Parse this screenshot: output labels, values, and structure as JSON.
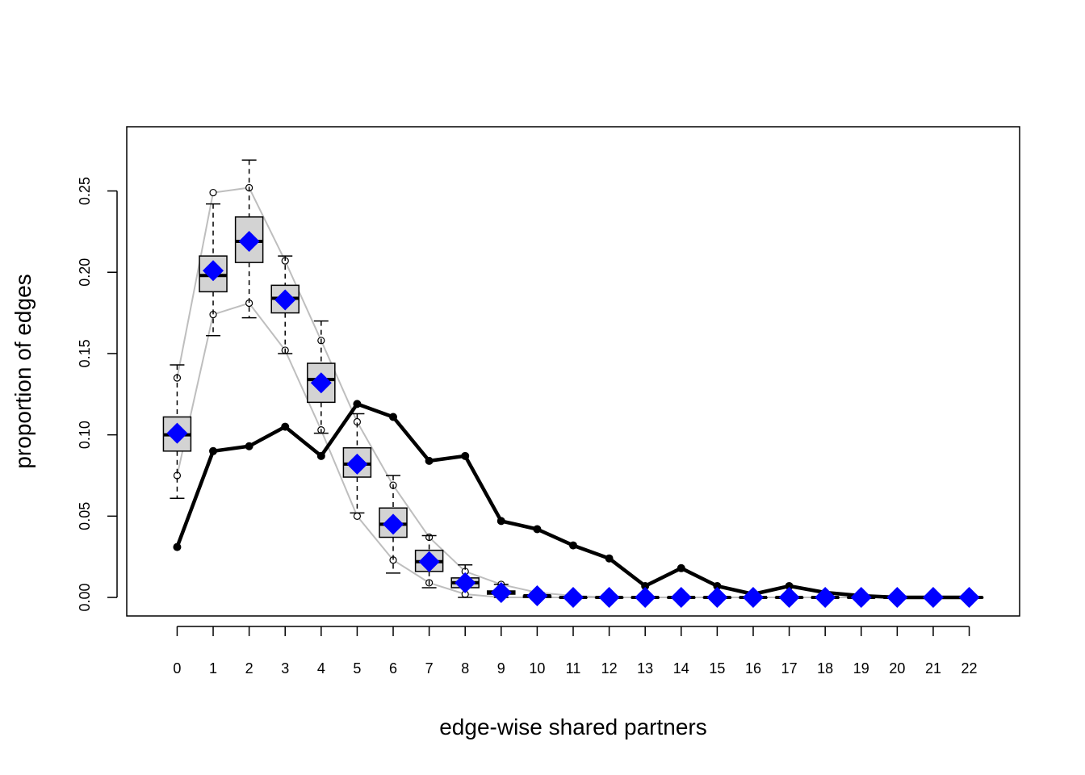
{
  "chart_data": {
    "type": "boxplot",
    "xlabel": "edge-wise shared partners",
    "ylabel": "proportion of edges",
    "xlim": [
      -1.4,
      23.4
    ],
    "ylim": [
      -0.0114,
      0.2895
    ],
    "x_ticks": [
      0,
      1,
      2,
      3,
      4,
      5,
      6,
      7,
      8,
      9,
      10,
      11,
      12,
      13,
      14,
      15,
      16,
      17,
      18,
      19,
      20,
      21,
      22
    ],
    "y_ticks": [
      0.0,
      0.05,
      0.1,
      0.15,
      0.2,
      0.25
    ],
    "y_tick_labels": [
      "0.00",
      "0.05",
      "0.10",
      "0.15",
      "0.20",
      "0.25"
    ],
    "grid": false,
    "colors": {
      "observed": "#000000",
      "simulated_mean": "#0000ff",
      "box_fill": "#d3d3d3",
      "ci_band": "#bebebe"
    },
    "observed": [
      0.031,
      0.09,
      0.093,
      0.105,
      0.087,
      0.119,
      0.111,
      0.084,
      0.087,
      0.047,
      0.042,
      0.032,
      0.024,
      0.007,
      0.018,
      0.007,
      0.002,
      0.007,
      0.003,
      0.001,
      0.0,
      0.0,
      0.0
    ],
    "simulated_mean": [
      0.101,
      0.201,
      0.219,
      0.183,
      0.132,
      0.082,
      0.045,
      0.022,
      0.009,
      0.003,
      0.001,
      0.0,
      0.0,
      0.0,
      0.0,
      0.0,
      0.0,
      0.0,
      0.0,
      0.0,
      0.0,
      0.0,
      0.0
    ],
    "ci_upper": [
      0.135,
      0.249,
      0.252,
      0.207,
      0.158,
      0.108,
      0.069,
      0.037,
      0.016,
      0.008,
      0.003,
      0.001,
      0.0,
      0.0,
      0.0,
      0.0,
      0.0,
      0.0,
      0.0,
      0.0,
      0.0,
      0.0,
      0.0
    ],
    "ci_lower": [
      0.075,
      0.174,
      0.181,
      0.152,
      0.103,
      0.05,
      0.023,
      0.009,
      0.002,
      0.0,
      0.0,
      0.0,
      0.0,
      0.0,
      0.0,
      0.0,
      0.0,
      0.0,
      0.0,
      0.0,
      0.0,
      0.0,
      0.0
    ],
    "boxes": [
      {
        "x": 0,
        "whisker_low": 0.061,
        "q1": 0.09,
        "median": 0.1,
        "q3": 0.111,
        "whisker_high": 0.143
      },
      {
        "x": 1,
        "whisker_low": 0.161,
        "q1": 0.188,
        "median": 0.198,
        "q3": 0.21,
        "whisker_high": 0.242
      },
      {
        "x": 2,
        "whisker_low": 0.172,
        "q1": 0.206,
        "median": 0.219,
        "q3": 0.234,
        "whisker_high": 0.269
      },
      {
        "x": 3,
        "whisker_low": 0.15,
        "q1": 0.175,
        "median": 0.184,
        "q3": 0.192,
        "whisker_high": 0.21
      },
      {
        "x": 4,
        "whisker_low": 0.101,
        "q1": 0.12,
        "median": 0.134,
        "q3": 0.144,
        "whisker_high": 0.17
      },
      {
        "x": 5,
        "whisker_low": 0.052,
        "q1": 0.074,
        "median": 0.082,
        "q3": 0.092,
        "whisker_high": 0.113
      },
      {
        "x": 6,
        "whisker_low": 0.015,
        "q1": 0.037,
        "median": 0.045,
        "q3": 0.055,
        "whisker_high": 0.075
      },
      {
        "x": 7,
        "whisker_low": 0.006,
        "q1": 0.016,
        "median": 0.022,
        "q3": 0.029,
        "whisker_high": 0.038
      },
      {
        "x": 8,
        "whisker_low": 0.0,
        "q1": 0.006,
        "median": 0.009,
        "q3": 0.012,
        "whisker_high": 0.02
      },
      {
        "x": 9,
        "whisker_low": 0.0,
        "q1": 0.002,
        "median": 0.003,
        "q3": 0.004,
        "whisker_high": 0.008
      },
      {
        "x": 10,
        "whisker_low": 0.0,
        "q1": 0.0,
        "median": 0.001,
        "q3": 0.001,
        "whisker_high": 0.003
      },
      {
        "x": 11,
        "whisker_low": 0.0,
        "q1": 0.0,
        "median": 0.0,
        "q3": 0.0,
        "whisker_high": 0.0
      },
      {
        "x": 12,
        "whisker_low": 0.0,
        "q1": 0.0,
        "median": 0.0,
        "q3": 0.0,
        "whisker_high": 0.0
      },
      {
        "x": 13,
        "whisker_low": 0.0,
        "q1": 0.0,
        "median": 0.0,
        "q3": 0.0,
        "whisker_high": 0.0
      },
      {
        "x": 14,
        "whisker_low": 0.0,
        "q1": 0.0,
        "median": 0.0,
        "q3": 0.0,
        "whisker_high": 0.0
      },
      {
        "x": 15,
        "whisker_low": 0.0,
        "q1": 0.0,
        "median": 0.0,
        "q3": 0.0,
        "whisker_high": 0.0
      },
      {
        "x": 16,
        "whisker_low": 0.0,
        "q1": 0.0,
        "median": 0.0,
        "q3": 0.0,
        "whisker_high": 0.0
      },
      {
        "x": 17,
        "whisker_low": 0.0,
        "q1": 0.0,
        "median": 0.0,
        "q3": 0.0,
        "whisker_high": 0.0
      },
      {
        "x": 18,
        "whisker_low": 0.0,
        "q1": 0.0,
        "median": 0.0,
        "q3": 0.0,
        "whisker_high": 0.0
      },
      {
        "x": 19,
        "whisker_low": 0.0,
        "q1": 0.0,
        "median": 0.0,
        "q3": 0.0,
        "whisker_high": 0.0
      },
      {
        "x": 20,
        "whisker_low": 0.0,
        "q1": 0.0,
        "median": 0.0,
        "q3": 0.0,
        "whisker_high": 0.0
      },
      {
        "x": 21,
        "whisker_low": 0.0,
        "q1": 0.0,
        "median": 0.0,
        "q3": 0.0,
        "whisker_high": 0.0
      },
      {
        "x": 22,
        "whisker_low": 0.0,
        "q1": 0.0,
        "median": 0.0,
        "q3": 0.0,
        "whisker_high": 0.0
      }
    ]
  }
}
